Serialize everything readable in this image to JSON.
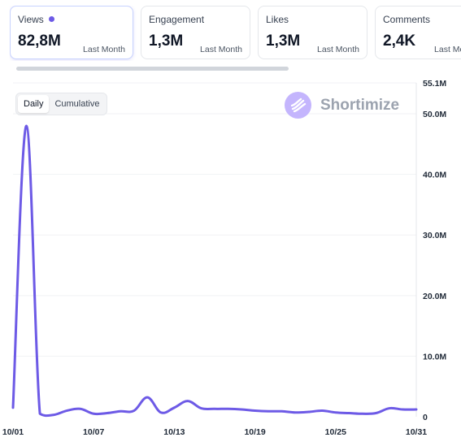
{
  "cards": [
    {
      "label": "Views",
      "value": "82,8M",
      "period": "Last Month",
      "active": true
    },
    {
      "label": "Engagement",
      "value": "1,3M",
      "period": "Last Month",
      "active": false
    },
    {
      "label": "Likes",
      "value": "1,3M",
      "period": "Last Month",
      "active": false
    },
    {
      "label": "Comments",
      "value": "2,4K",
      "period": "Last Month",
      "active": false
    }
  ],
  "toggle": {
    "daily": "Daily",
    "cumulative": "Cumulative"
  },
  "brand": {
    "name": "Shortimize"
  },
  "colors": {
    "line": "#6d5ae6",
    "accent": "#c4b5fd"
  },
  "chart_data": {
    "type": "line",
    "title": "",
    "xlabel": "",
    "ylabel": "",
    "ylim": [
      0,
      55100000
    ],
    "y_ticks": [
      {
        "value": 0,
        "label": "0"
      },
      {
        "value": 10000000,
        "label": "10.0M"
      },
      {
        "value": 20000000,
        "label": "20.0M"
      },
      {
        "value": 30000000,
        "label": "30.0M"
      },
      {
        "value": 40000000,
        "label": "40.0M"
      },
      {
        "value": 50000000,
        "label": "50.0M"
      },
      {
        "value": 55100000,
        "label": "55.1M"
      }
    ],
    "x_ticks": [
      {
        "day": 1,
        "label": "10/01"
      },
      {
        "day": 7,
        "label": "10/07"
      },
      {
        "day": 13,
        "label": "10/13"
      },
      {
        "day": 19,
        "label": "10/19"
      },
      {
        "day": 25,
        "label": "10/25"
      },
      {
        "day": 31,
        "label": "10/31"
      }
    ],
    "grid": true,
    "series": [
      {
        "x": [
          1,
          2,
          3,
          4,
          5,
          6,
          7,
          8,
          9,
          10,
          11,
          12,
          13,
          14,
          15,
          16,
          17,
          18,
          19,
          20,
          21,
          22,
          23,
          24,
          25,
          26,
          27,
          28,
          29,
          30,
          31
        ],
        "values": [
          1500000,
          48000000,
          500000,
          300000,
          1000000,
          1300000,
          500000,
          600000,
          900000,
          1000000,
          3200000,
          700000,
          1500000,
          2600000,
          1400000,
          1300000,
          1300000,
          1200000,
          1000000,
          900000,
          900000,
          700000,
          800000,
          1000000,
          700000,
          600000,
          500000,
          600000,
          1400000,
          1200000,
          1200000
        ]
      }
    ]
  }
}
